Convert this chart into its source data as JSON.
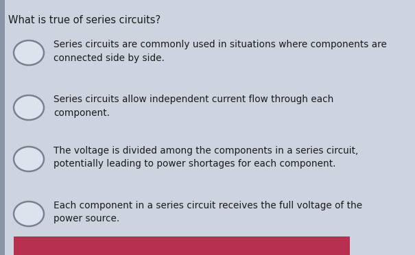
{
  "title": "What is true of series circuits?",
  "title_fontsize": 10.5,
  "options": [
    "Series circuits are commonly used in situations where components are\nconnected side by side.",
    "Series circuits allow independent current flow through each\ncomponent.",
    "The voltage is divided among the components in a series circuit,\npotentially leading to power shortages for each component.",
    "Each component in a series circuit receives the full voltage of the\npower source."
  ],
  "background_color": "#cdd4df",
  "left_bar_color": "#8a94a6",
  "title_color": "#1a1a1a",
  "text_color": "#1a1a1a",
  "circle_edge_color": "#7a8090",
  "circle_face_color": "#dde3ec",
  "bottom_bar_color": "#b83050",
  "figwidth": 6.05,
  "figheight": 3.72,
  "dpi": 100
}
